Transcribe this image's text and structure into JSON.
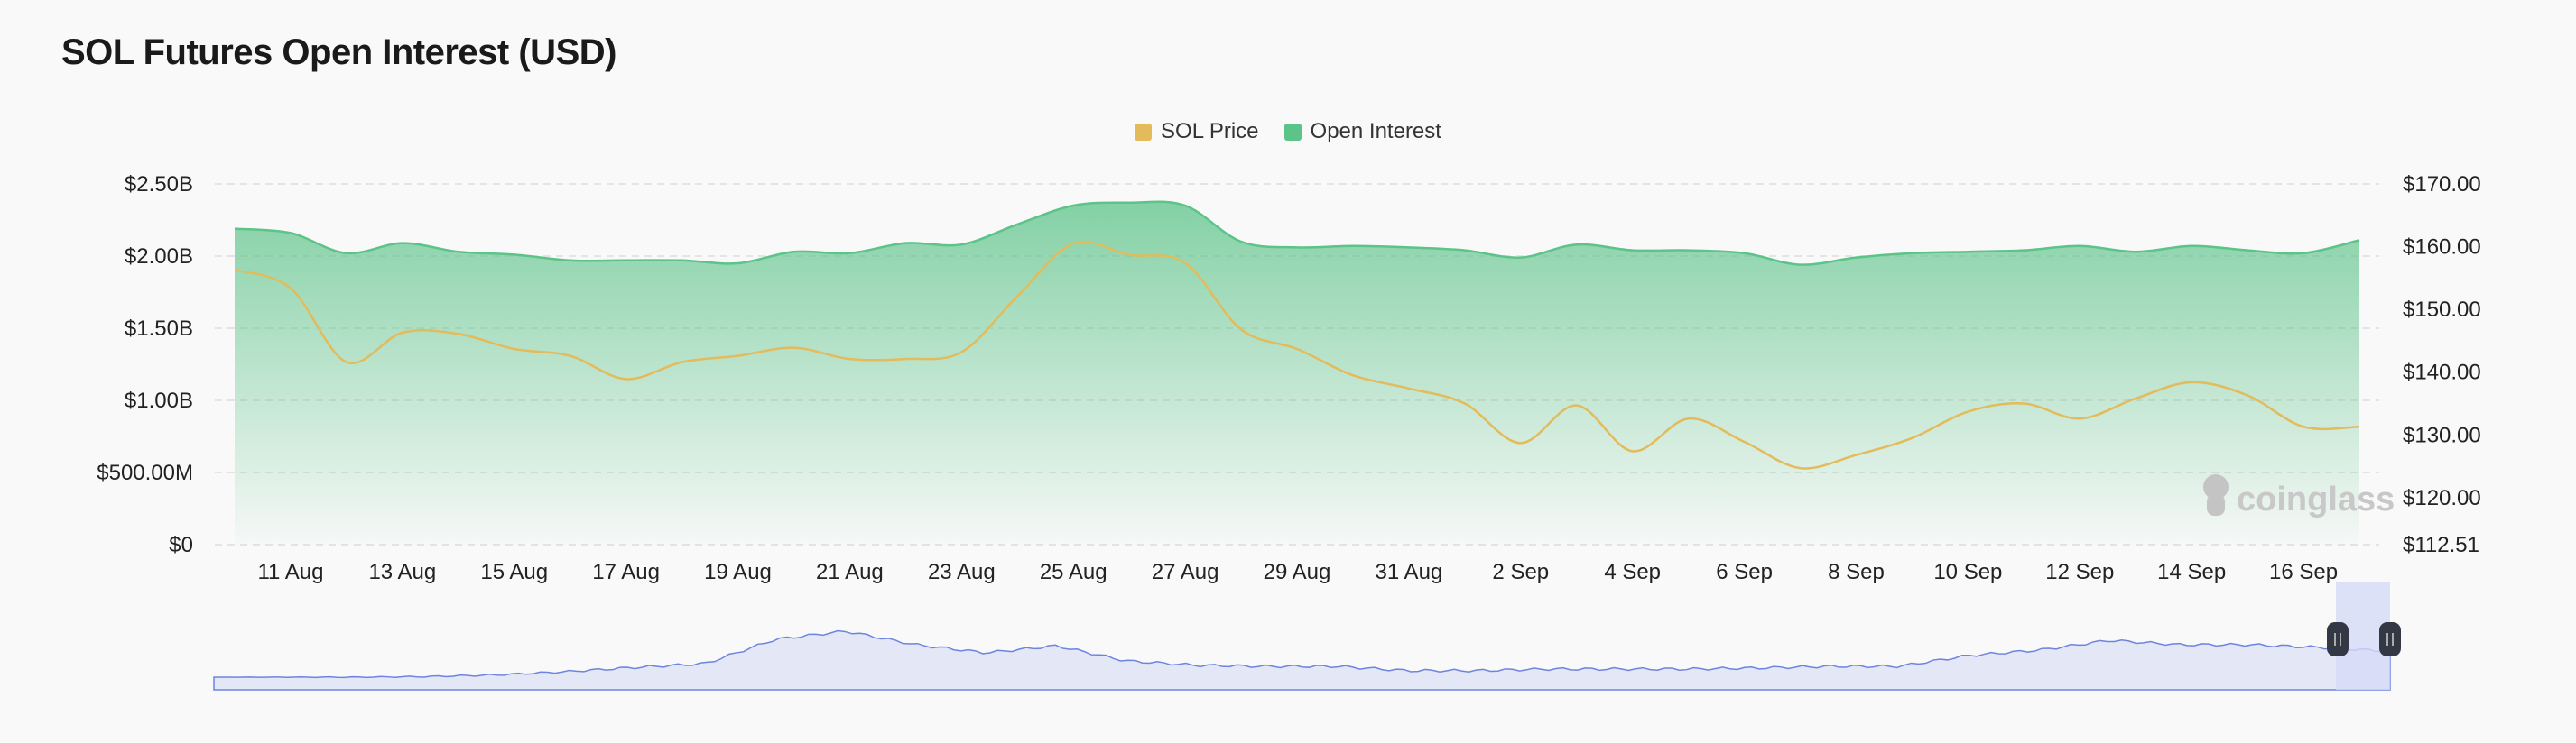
{
  "chart_data": {
    "type": "line",
    "title": "SOL Futures Open Interest (USD)",
    "legend": "top-center",
    "grid": true,
    "x": [
      "10 Aug",
      "11 Aug",
      "12 Aug",
      "13 Aug",
      "14 Aug",
      "15 Aug",
      "16 Aug",
      "17 Aug",
      "18 Aug",
      "19 Aug",
      "20 Aug",
      "21 Aug",
      "22 Aug",
      "23 Aug",
      "24 Aug",
      "25 Aug",
      "26 Aug",
      "27 Aug",
      "28 Aug",
      "29 Aug",
      "30 Aug",
      "31 Aug",
      "1 Sep",
      "2 Sep",
      "3 Sep",
      "4 Sep",
      "5 Sep",
      "6 Sep",
      "7 Sep",
      "8 Sep",
      "9 Sep",
      "10 Sep",
      "11 Sep",
      "12 Sep",
      "13 Sep",
      "14 Sep",
      "15 Sep",
      "16 Sep",
      "17 Sep"
    ],
    "x_tick_labels": [
      "11 Aug",
      "13 Aug",
      "15 Aug",
      "17 Aug",
      "19 Aug",
      "21 Aug",
      "23 Aug",
      "25 Aug",
      "27 Aug",
      "29 Aug",
      "31 Aug",
      "2 Sep",
      "4 Sep",
      "6 Sep",
      "8 Sep",
      "10 Sep",
      "12 Sep",
      "14 Sep",
      "16 Sep"
    ],
    "y_left": {
      "ticks": [
        "$0",
        "$500.00M",
        "$1.00B",
        "$1.50B",
        "$2.00B",
        "$2.50B"
      ],
      "range": [
        0,
        2500000000
      ]
    },
    "y_right": {
      "ticks": [
        "$112.51",
        "$120.00",
        "$130.00",
        "$140.00",
        "$150.00",
        "$160.00",
        "$170.00"
      ],
      "range": [
        112.51,
        170
      ]
    },
    "series": [
      {
        "name": "Open Interest",
        "type": "area",
        "axis": "left",
        "color": "#5cc389",
        "values": [
          2190000000,
          2160000000,
          2020000000,
          2090000000,
          2030000000,
          2010000000,
          1970000000,
          1970000000,
          1970000000,
          1950000000,
          2030000000,
          2020000000,
          2090000000,
          2080000000,
          2220000000,
          2350000000,
          2370000000,
          2350000000,
          2100000000,
          2060000000,
          2070000000,
          2060000000,
          2040000000,
          1990000000,
          2080000000,
          2040000000,
          2040000000,
          2020000000,
          1940000000,
          1990000000,
          2020000000,
          2030000000,
          2040000000,
          2070000000,
          2030000000,
          2070000000,
          2040000000,
          2020000000,
          2110000000
        ]
      },
      {
        "name": "SOL Price",
        "type": "line",
        "axis": "right",
        "color": "#e3bb5b",
        "values": [
          156.3,
          153.4,
          141.6,
          146.3,
          146.1,
          143.7,
          142.6,
          138.9,
          141.6,
          142.6,
          143.9,
          142.1,
          142.1,
          143.2,
          152.1,
          160.5,
          158.7,
          157.4,
          146.8,
          143.7,
          139.5,
          137.4,
          135.0,
          128.7,
          134.7,
          127.4,
          132.6,
          128.9,
          124.7,
          126.8,
          129.5,
          133.7,
          135.0,
          132.6,
          135.8,
          138.4,
          136.3,
          131.3,
          131.3
        ]
      }
    ]
  },
  "legend": [
    {
      "label": "SOL Price",
      "color": "#e3bb5b"
    },
    {
      "label": "Open Interest",
      "color": "#5cc389"
    }
  ],
  "watermark": "coinglass"
}
